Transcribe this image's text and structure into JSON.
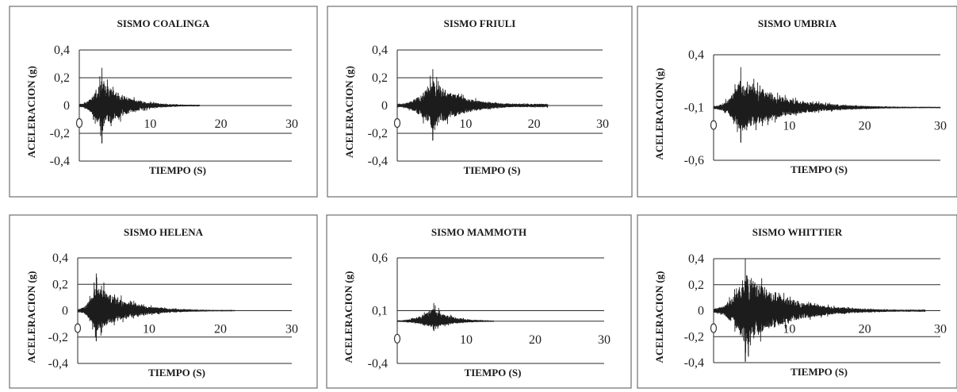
{
  "chart_data": [
    {
      "type": "line",
      "title": "SISMO COALINGA",
      "xlabel": "TIEMPO (S)",
      "ylabel": "ACELERACION (g)",
      "xlim": [
        0,
        30
      ],
      "ylim": [
        -0.4,
        0.4
      ],
      "x_ticks": [
        "0",
        "10",
        "20",
        "30"
      ],
      "y_ticks": [
        "0,4",
        "0,2",
        "0",
        "-0,2",
        "-0,4"
      ],
      "y_tick_values": [
        0.4,
        0.2,
        0,
        -0.2,
        -0.4
      ],
      "x_axis_at": 0,
      "grid": "horizontal",
      "series": [
        {
          "envelope": {
            "duration": 17,
            "peak_time": 3.2,
            "peak": 0.27,
            "min": -0.27,
            "floor": 0.005
          }
        }
      ]
    },
    {
      "type": "line",
      "title": "SISMO FRIULI",
      "xlabel": "TIEMPO (S)",
      "ylabel": "ACELERACION (g)",
      "xlim": [
        0,
        30
      ],
      "ylim": [
        -0.4,
        0.4
      ],
      "x_ticks": [
        "0",
        "10",
        "20",
        "30"
      ],
      "y_ticks": [
        "0,4",
        "0,2",
        "0",
        "-0,2",
        "-0,4"
      ],
      "y_tick_values": [
        0.4,
        0.2,
        0,
        -0.2,
        -0.4
      ],
      "x_axis_at": 0,
      "grid": "horizontal",
      "series": [
        {
          "envelope": {
            "duration": 22,
            "peak_time": 5.2,
            "peak": 0.26,
            "min": -0.25,
            "floor": 0.015
          }
        }
      ]
    },
    {
      "type": "line",
      "title": "SISMO UMBRIA",
      "xlabel": "TIEMPO (S)",
      "ylabel": "ACELERACION (g)",
      "xlim": [
        0,
        30
      ],
      "ylim": [
        -0.6,
        0.4
      ],
      "x_ticks": [
        "0",
        "10",
        "20",
        "30"
      ],
      "y_ticks": [
        "0,4",
        "-0,1",
        "-0,6"
      ],
      "y_tick_values": [
        0.4,
        -0.1,
        -0.6
      ],
      "x_axis_at": -0.1,
      "grid": "horizontal",
      "series": [
        {
          "envelope": {
            "duration": 30,
            "peak_time": 3.6,
            "peak": 0.38,
            "min": -0.33,
            "floor": 0.005
          }
        }
      ]
    },
    {
      "type": "line",
      "title": "SISMO HELENA",
      "xlabel": "TIEMPO (S)",
      "ylabel": "ACELERACION (g)",
      "xlim": [
        0,
        30
      ],
      "ylim": [
        -0.4,
        0.4
      ],
      "x_ticks": [
        "0",
        "10",
        "20",
        "30"
      ],
      "y_ticks": [
        "0,4",
        "0,2",
        "0",
        "-0,2",
        "-0,4"
      ],
      "y_tick_values": [
        0.4,
        0.2,
        0,
        -0.2,
        -0.4
      ],
      "x_axis_at": 0,
      "grid": "horizontal",
      "series": [
        {
          "envelope": {
            "duration": 22,
            "peak_time": 2.6,
            "peak": 0.28,
            "min": -0.23,
            "floor": 0.004
          }
        }
      ]
    },
    {
      "type": "line",
      "title": "SISMO MAMMOTH",
      "xlabel": "TIEMPO (S)",
      "ylabel": "ACELERACION (g)",
      "xlim": [
        0,
        30
      ],
      "ylim": [
        -0.4,
        0.6
      ],
      "x_ticks": [
        "0",
        "10",
        "20",
        "30"
      ],
      "y_ticks": [
        "0,6",
        "0,1",
        "-0,4"
      ],
      "y_tick_values": [
        0.6,
        0.1,
        -0.4
      ],
      "x_axis_at": 0,
      "grid": "horizontal",
      "series": [
        {
          "envelope": {
            "duration": 14,
            "peak_time": 5.3,
            "peak": 0.17,
            "min": -0.09,
            "floor": 0.003
          }
        }
      ]
    },
    {
      "type": "line",
      "title": "SISMO WHITTIER",
      "xlabel": "TIEMPO (S)",
      "ylabel": "ACELERACION (g)",
      "xlim": [
        0,
        30
      ],
      "ylim": [
        -0.4,
        0.4
      ],
      "x_ticks": [
        "0",
        "10",
        "20",
        "30"
      ],
      "y_ticks": [
        "0,4",
        "0,2",
        "0",
        "-0,2",
        "-0,4"
      ],
      "y_tick_values": [
        0.4,
        0.2,
        0,
        -0.2,
        -0.4
      ],
      "x_axis_at": 0,
      "grid": "horizontal",
      "series": [
        {
          "envelope": {
            "duration": 28,
            "peak_time": 4.2,
            "peak": 0.4,
            "min": -0.39,
            "floor": 0.008
          }
        }
      ]
    }
  ]
}
